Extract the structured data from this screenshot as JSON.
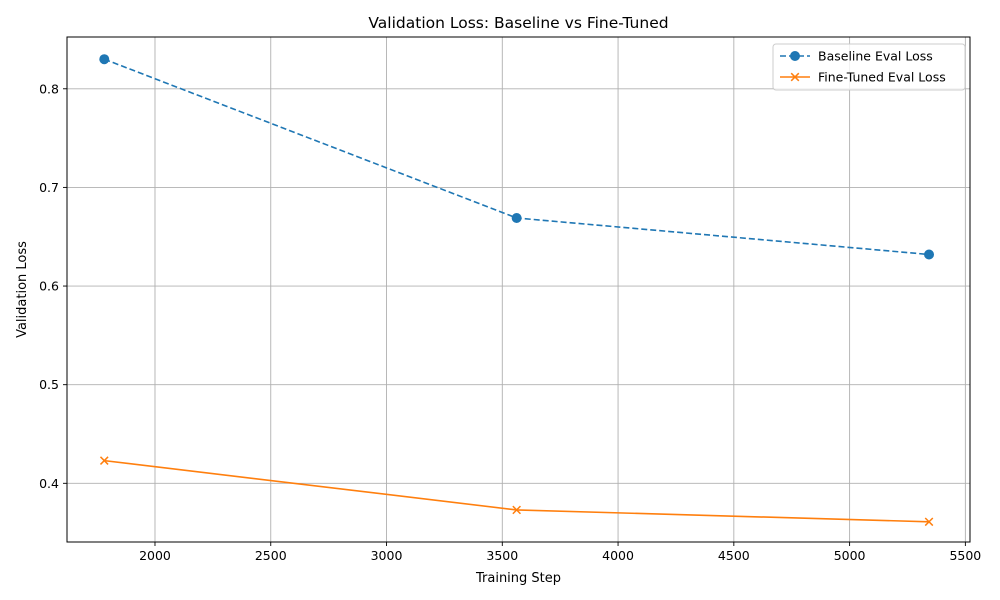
{
  "chart_data": {
    "type": "line",
    "title": "Validation Loss: Baseline vs Fine-Tuned",
    "xlabel": "Training Step",
    "ylabel": "Validation Loss",
    "xlim": [
      1620,
      5520
    ],
    "ylim": [
      0.3405,
      0.8525
    ],
    "xticks": [
      2000,
      2500,
      3000,
      3500,
      4000,
      4500,
      5000,
      5500
    ],
    "yticks": [
      0.4,
      0.5,
      0.6,
      0.7,
      0.8
    ],
    "xtick_labels": [
      "2000",
      "2500",
      "3000",
      "3500",
      "4000",
      "4500",
      "5000",
      "5500"
    ],
    "ytick_labels": [
      "0.4",
      "0.5",
      "0.6",
      "0.7",
      "0.8"
    ],
    "grid": true,
    "legend_position": "top-right",
    "x": [
      1781,
      3562,
      5343
    ],
    "series": [
      {
        "name": "Baseline Eval Loss",
        "values": [
          0.83,
          0.669,
          0.632
        ],
        "color": "#1f77b4",
        "line_style": "dashed",
        "marker": "circle"
      },
      {
        "name": "Fine-Tuned Eval Loss",
        "values": [
          0.423,
          0.373,
          0.361
        ],
        "color": "#ff7f0e",
        "line_style": "solid",
        "marker": "x"
      }
    ]
  }
}
